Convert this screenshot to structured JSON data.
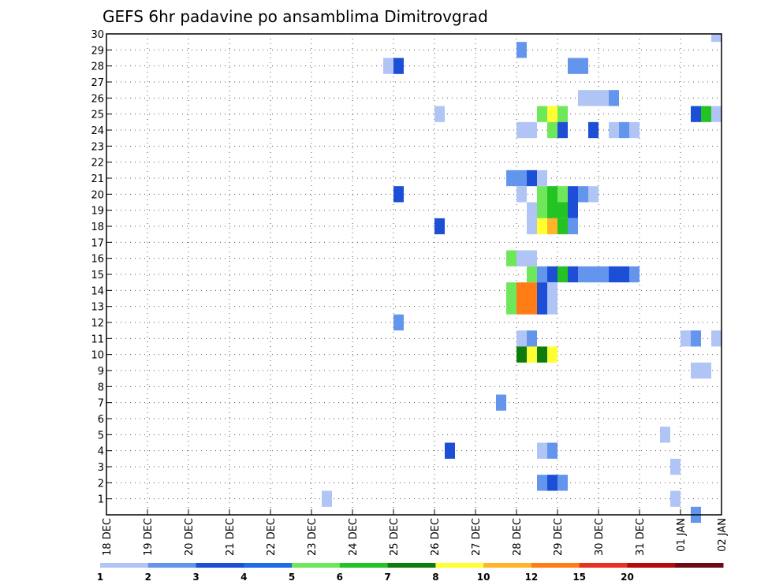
{
  "chart_data": {
    "type": "heatmap",
    "title": "GEFS 6hr padavine po ansamblima Dimitrovgrad",
    "xlabel": "",
    "ylabel": "",
    "x_ticks": [
      "18 DEC",
      "19 DEC",
      "20 DEC",
      "21 DEC",
      "22 DEC",
      "23 DEC",
      "24 DEC",
      "25 DEC",
      "26 DEC",
      "27 DEC",
      "28 DEC",
      "29 DEC",
      "30 DEC",
      "31 DEC",
      "01 JAN",
      "02 JAN"
    ],
    "x_unit": "6hr step (0 = 18 DEC 00Z, 60 = 02 JAN 00Z)",
    "xlim": [
      0,
      60
    ],
    "ylim": [
      0,
      30
    ],
    "y_ticks": [
      1,
      2,
      3,
      4,
      5,
      6,
      7,
      8,
      9,
      10,
      11,
      12,
      13,
      14,
      15,
      16,
      17,
      18,
      19,
      20,
      21,
      22,
      23,
      24,
      25,
      26,
      27,
      28,
      29,
      30
    ],
    "grid": true,
    "legend": {
      "placement": "bottom",
      "bounds": [
        "1",
        "2",
        "3",
        "4",
        "5",
        "6",
        "7",
        "8",
        "10",
        "12",
        "15",
        "20"
      ],
      "colors": [
        "#b0c4f5",
        "#6495ed",
        "#1c4fd6",
        "#1e6ae8",
        "#6ee85a",
        "#22c322",
        "#0c7c0c",
        "#ffff32",
        "#ffb42a",
        "#ff7d14",
        "#e6321e",
        "#b40a0a",
        "#6e0a14"
      ]
    },
    "cells": [
      {
        "m": 30,
        "t": [
          [
            59,
            1
          ]
        ]
      },
      {
        "m": 29,
        "t": [
          [
            40,
            2
          ]
        ]
      },
      {
        "m": 28,
        "t": [
          [
            27,
            1
          ],
          [
            28,
            3
          ],
          [
            45,
            2
          ],
          [
            46,
            2
          ]
        ]
      },
      {
        "m": 26,
        "t": [
          [
            46,
            1
          ],
          [
            47,
            1
          ],
          [
            48,
            1
          ],
          [
            49,
            2
          ]
        ]
      },
      {
        "m": 25,
        "t": [
          [
            32,
            1
          ],
          [
            42,
            5
          ],
          [
            43,
            8
          ],
          [
            44,
            5
          ],
          [
            57,
            3
          ],
          [
            58,
            6
          ],
          [
            59,
            1
          ]
        ]
      },
      {
        "m": 24,
        "t": [
          [
            40,
            1
          ],
          [
            41,
            1
          ],
          [
            43,
            5
          ],
          [
            44,
            3
          ],
          [
            47,
            3
          ],
          [
            49,
            1
          ],
          [
            50,
            2
          ],
          [
            51,
            1
          ]
        ]
      },
      {
        "m": 21,
        "t": [
          [
            39,
            2
          ],
          [
            40,
            2
          ],
          [
            41,
            3
          ],
          [
            42,
            1
          ]
        ]
      },
      {
        "m": 20,
        "t": [
          [
            28,
            3
          ],
          [
            40,
            1
          ],
          [
            42,
            5
          ],
          [
            43,
            6
          ],
          [
            44,
            5
          ],
          [
            45,
            3
          ],
          [
            46,
            2
          ],
          [
            47,
            1
          ]
        ]
      },
      {
        "m": 19,
        "t": [
          [
            41,
            1
          ],
          [
            42,
            5
          ],
          [
            43,
            6
          ],
          [
            44,
            6
          ],
          [
            45,
            3
          ]
        ]
      },
      {
        "m": 18,
        "t": [
          [
            32,
            3
          ],
          [
            41,
            1
          ],
          [
            42,
            8
          ],
          [
            43,
            9
          ],
          [
            44,
            6
          ],
          [
            45,
            2
          ]
        ]
      },
      {
        "m": 16,
        "t": [
          [
            39,
            5
          ],
          [
            40,
            1
          ],
          [
            41,
            1
          ]
        ]
      },
      {
        "m": 15,
        "t": [
          [
            41,
            5
          ],
          [
            42,
            2
          ],
          [
            43,
            3
          ],
          [
            44,
            6
          ],
          [
            45,
            3
          ],
          [
            46,
            2
          ],
          [
            47,
            2
          ],
          [
            48,
            2
          ],
          [
            49,
            3
          ],
          [
            50,
            3
          ],
          [
            51,
            2
          ]
        ]
      },
      {
        "m": 14,
        "t": [
          [
            39,
            5
          ],
          [
            40,
            10
          ],
          [
            41,
            10
          ],
          [
            42,
            3
          ],
          [
            43,
            1
          ]
        ]
      },
      {
        "m": 13,
        "t": [
          [
            39,
            5
          ],
          [
            40,
            10
          ],
          [
            41,
            10
          ],
          [
            42,
            3
          ],
          [
            43,
            1
          ]
        ]
      },
      {
        "m": 12,
        "t": [
          [
            28,
            2
          ]
        ]
      },
      {
        "m": 11,
        "t": [
          [
            40,
            1
          ],
          [
            41,
            2
          ],
          [
            56,
            1
          ],
          [
            57,
            2
          ],
          [
            59,
            1
          ]
        ]
      },
      {
        "m": 10,
        "t": [
          [
            40,
            7
          ],
          [
            41,
            8
          ],
          [
            42,
            7
          ],
          [
            43,
            8
          ]
        ]
      },
      {
        "m": 9,
        "t": [
          [
            57,
            1
          ],
          [
            58,
            1
          ]
        ]
      },
      {
        "m": 7,
        "t": [
          [
            38,
            2
          ]
        ]
      },
      {
        "m": 5,
        "t": [
          [
            54,
            1
          ]
        ]
      },
      {
        "m": 4,
        "t": [
          [
            33,
            3
          ],
          [
            42,
            1
          ],
          [
            43,
            2
          ]
        ]
      },
      {
        "m": 3,
        "t": [
          [
            55,
            1
          ]
        ]
      },
      {
        "m": 2,
        "t": [
          [
            42,
            2
          ],
          [
            43,
            3
          ],
          [
            44,
            2
          ]
        ]
      },
      {
        "m": 1,
        "t": [
          [
            21,
            1
          ],
          [
            55,
            1
          ]
        ]
      },
      {
        "m": 0,
        "t": [
          [
            57,
            2
          ]
        ]
      }
    ]
  }
}
